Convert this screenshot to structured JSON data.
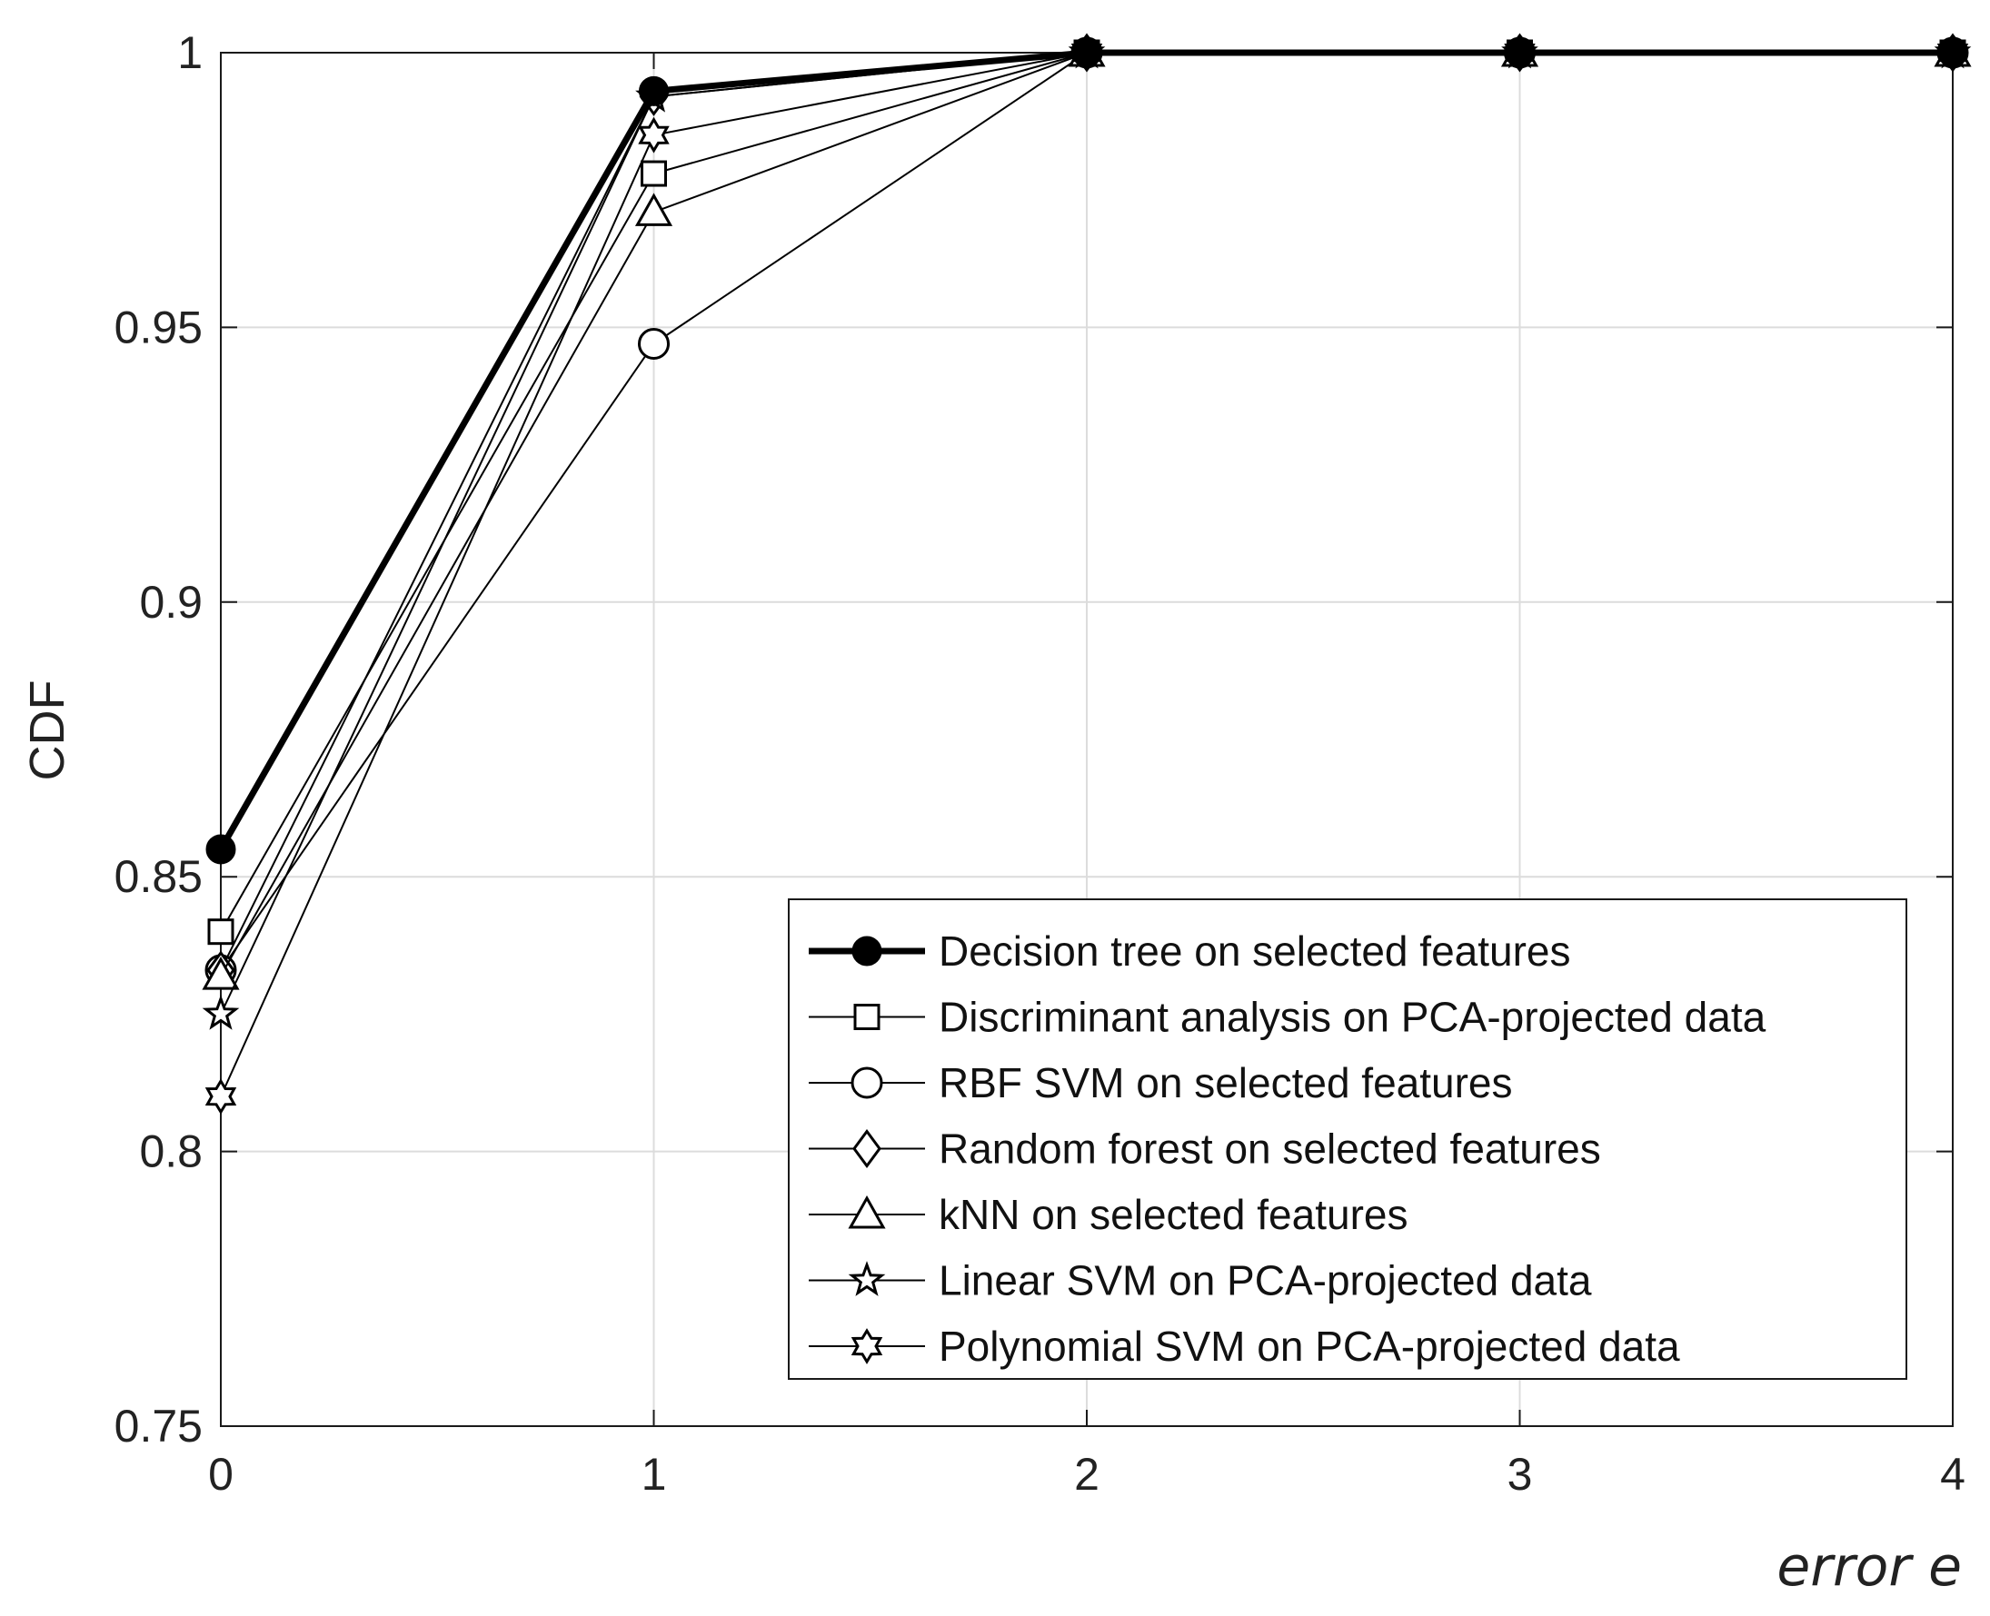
{
  "chart_data": {
    "type": "line",
    "title": "",
    "xlabel": "error e",
    "ylabel": "CDF",
    "x": [
      0,
      1,
      2,
      3,
      4
    ],
    "xlim": [
      0,
      4
    ],
    "ylim": [
      0.75,
      1
    ],
    "xticks": [
      0,
      1,
      2,
      3,
      4
    ],
    "yticks": [
      0.75,
      0.8,
      0.85,
      0.9,
      0.95,
      1
    ],
    "ytick_labels": [
      "0.75",
      "0.8",
      "0.85",
      "0.9",
      "0.95",
      "1"
    ],
    "xtick_labels": [
      "0",
      "1",
      "2",
      "3",
      "4"
    ],
    "grid": true,
    "legend_position": "bottom-right",
    "series": [
      {
        "name": "Decision tree on selected features",
        "marker": "filled-circle",
        "bold": true,
        "values": [
          0.855,
          0.993,
          1,
          1,
          1
        ]
      },
      {
        "name": "Discriminant analysis on PCA-projected data",
        "marker": "square",
        "bold": false,
        "values": [
          0.84,
          0.978,
          1,
          1,
          1
        ]
      },
      {
        "name": "RBF SVM on selected features",
        "marker": "circle",
        "bold": false,
        "values": [
          0.833,
          0.947,
          1,
          1,
          1
        ]
      },
      {
        "name": "Random forest on selected features",
        "marker": "diamond",
        "bold": false,
        "values": [
          0.833,
          0.992,
          1,
          1,
          1
        ]
      },
      {
        "name": "kNN on selected features",
        "marker": "triangle",
        "bold": false,
        "values": [
          0.832,
          0.971,
          1,
          1,
          1
        ]
      },
      {
        "name": "Linear SVM on PCA-projected data",
        "marker": "star5",
        "bold": false,
        "values": [
          0.825,
          0.992,
          1,
          1,
          1
        ]
      },
      {
        "name": "Polynomial SVM on PCA-projected data",
        "marker": "star6",
        "bold": false,
        "values": [
          0.81,
          0.985,
          1,
          1,
          1
        ]
      }
    ]
  }
}
